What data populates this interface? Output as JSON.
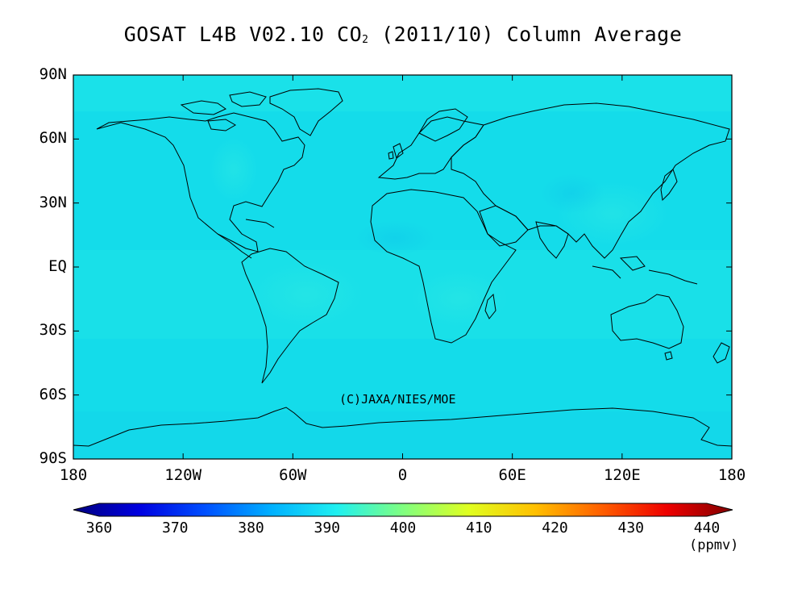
{
  "title": {
    "main": "GOSAT L4B V02.10 CO",
    "subscript": "2",
    "tail": " (2011/10) Column Average"
  },
  "map": {
    "projection": "equirectangular",
    "lat_range": [
      -90,
      90
    ],
    "lon_range": [
      -180,
      180
    ],
    "background_color": "#14dcea",
    "coastline_color": "#000000",
    "y_tick_labels": [
      "90N",
      "60N",
      "30N",
      "EQ",
      "30S",
      "60S",
      "90S"
    ],
    "y_tick_values": [
      90,
      60,
      30,
      0,
      -30,
      -60,
      -90
    ],
    "x_tick_labels": [
      "180",
      "120W",
      "60W",
      "0",
      "60E",
      "120E",
      "180"
    ],
    "x_tick_values": [
      -180,
      -120,
      -60,
      0,
      60,
      120,
      180
    ],
    "copyright": "(C)JAXA/NIES/MOE"
  },
  "colorbar": {
    "min": 360,
    "max": 440,
    "tick_labels": [
      "360",
      "370",
      "380",
      "390",
      "400",
      "410",
      "420",
      "430",
      "440"
    ],
    "unit": "(ppmv)",
    "colors": [
      "#00007f",
      "#0000e0",
      "#0050ff",
      "#00b0ff",
      "#20f0f0",
      "#80ff80",
      "#e0ff20",
      "#ffc000",
      "#ff6000",
      "#ee0000",
      "#800000"
    ]
  }
}
